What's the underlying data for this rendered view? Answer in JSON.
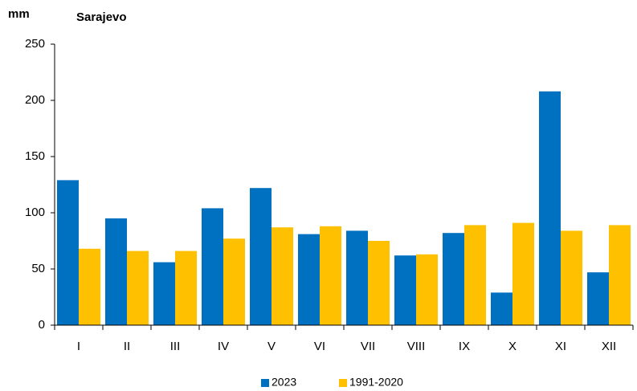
{
  "chart_data": {
    "type": "bar",
    "title": "Sarajevo",
    "y_label": "mm",
    "categories": [
      "I",
      "II",
      "III",
      "IV",
      "V",
      "VI",
      "VII",
      "VIII",
      "IX",
      "X",
      "XI",
      "XII"
    ],
    "series": [
      {
        "name": "2023",
        "color": "#0070c0",
        "values": [
          129,
          95,
          56,
          104,
          122,
          81,
          84,
          62,
          82,
          29,
          208,
          47
        ]
      },
      {
        "name": "1991-2020",
        "color": "#ffc000",
        "values": [
          68,
          66,
          66,
          77,
          87,
          88,
          75,
          63,
          89,
          91,
          84,
          89
        ]
      }
    ],
    "ylim": [
      0,
      250
    ],
    "yticks": [
      0,
      50,
      100,
      150,
      200,
      250
    ],
    "grid": false,
    "legend": "bottom"
  }
}
